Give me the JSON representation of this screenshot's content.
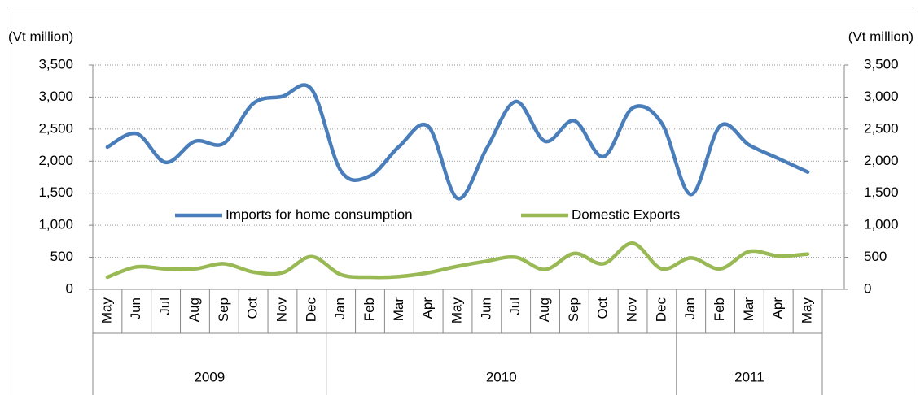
{
  "chart_data": {
    "type": "line",
    "y_label": "(Vt million)",
    "y2_label": "(Vt million)",
    "categories": [
      "May",
      "Jun",
      "Jul",
      "Aug",
      "Sep",
      "Oct",
      "Nov",
      "Dec",
      "Jan",
      "Feb",
      "Mar",
      "Apr",
      "May",
      "Jun",
      "Jul",
      "Aug",
      "Sep",
      "Oct",
      "Nov",
      "Dec",
      "Jan",
      "Feb",
      "Mar",
      "Apr",
      "May"
    ],
    "category_groups": [
      {
        "label": "2009",
        "count": 8
      },
      {
        "label": "2010",
        "count": 12
      },
      {
        "label": "2011",
        "count": 5
      }
    ],
    "series": [
      {
        "name": "Imports for home consumption",
        "color": "#4a7ebb",
        "values": [
          2220,
          2430,
          1980,
          2310,
          2280,
          2900,
          3010,
          3120,
          1850,
          1770,
          2230,
          2540,
          1420,
          2200,
          2930,
          2310,
          2630,
          2070,
          2830,
          2590,
          1480,
          2550,
          2250,
          2040,
          1830
        ]
      },
      {
        "name": "Domestic Exports",
        "color": "#98b954",
        "values": [
          190,
          350,
          320,
          320,
          400,
          270,
          260,
          510,
          230,
          190,
          200,
          260,
          360,
          440,
          500,
          310,
          560,
          400,
          720,
          320,
          490,
          320,
          590,
          520,
          550
        ]
      }
    ],
    "ylim": [
      0,
      3500
    ],
    "yticks": [
      0,
      500,
      {
        "value": 1000,
        "label": "1,000"
      },
      {
        "value": 1500,
        "label": "1,500"
      },
      {
        "value": 2000,
        "label": "2,000"
      },
      {
        "value": 2500,
        "label": "2,500"
      },
      {
        "value": 3000,
        "label": "3,000"
      },
      {
        "value": 3500,
        "label": "3,500"
      }
    ],
    "y2lim": [
      0,
      3500
    ],
    "y2ticks": [
      0,
      500,
      {
        "value": 1000,
        "label": "1,000"
      },
      {
        "value": 1500,
        "label": "1,500"
      },
      {
        "value": 2000,
        "label": "2,000"
      },
      {
        "value": 2500,
        "label": "2,500"
      },
      {
        "value": 3000,
        "label": "3,000"
      },
      {
        "value": 3500,
        "label": "3,500"
      }
    ],
    "grid": true,
    "legend": "center"
  }
}
